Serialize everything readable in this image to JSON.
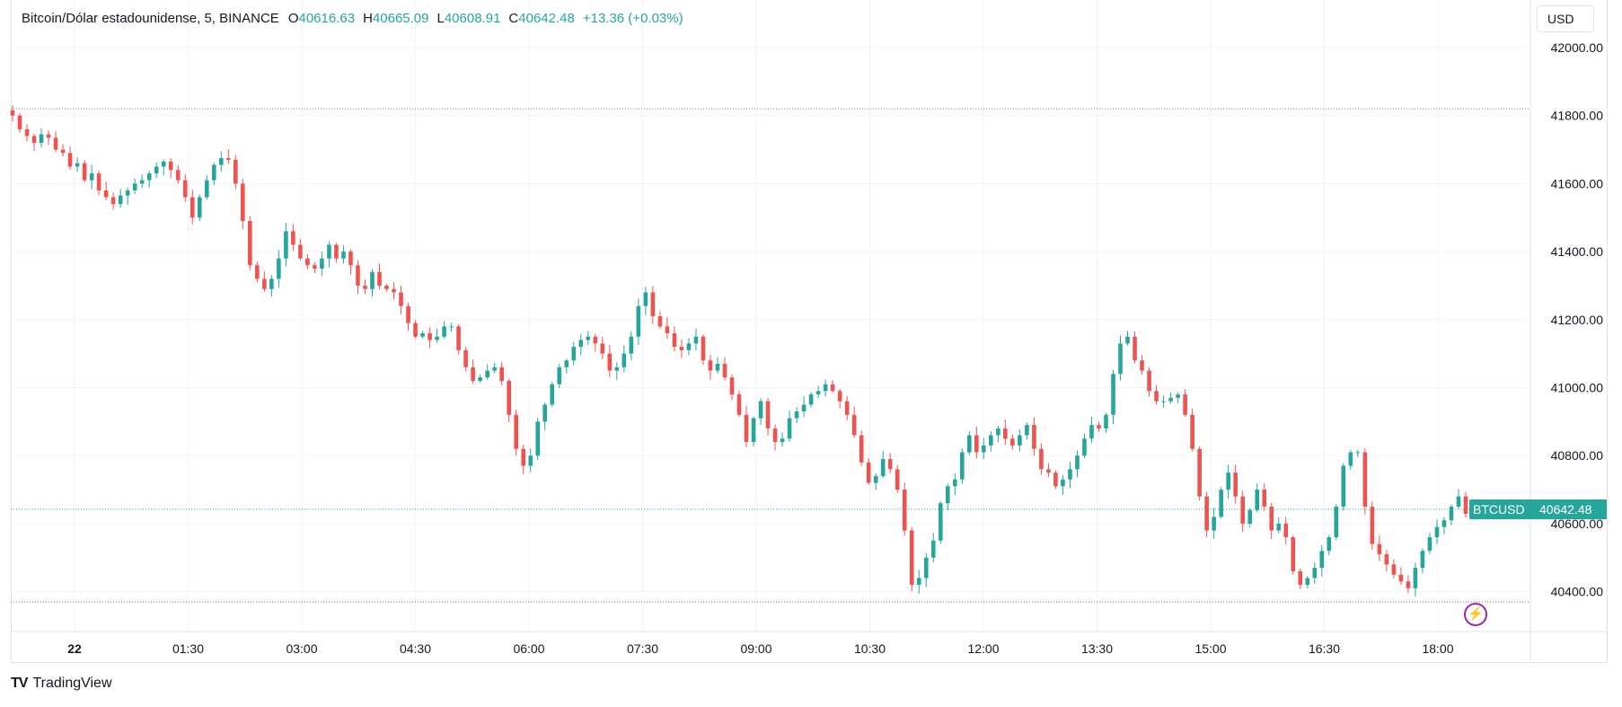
{
  "legend": {
    "title": "Bitcoin/Dólar estadounidense, 5, BINANCE",
    "o_key": "O",
    "o_val": "40616.63",
    "h_key": "H",
    "h_val": "40665.09",
    "l_key": "L",
    "l_val": "40608.91",
    "c_key": "C",
    "c_val": "40642.48",
    "change": "+13.36 (+0.03%)"
  },
  "currency_button": "USD",
  "symbol_tag": "BTCUSD",
  "last_price_tag": "40642.48",
  "brand": {
    "logo": "TV",
    "name": "TradingView"
  },
  "icons": {
    "bolt": "lightning-bolt-icon"
  },
  "colors": {
    "up": "#26a69a",
    "down": "#ef5350",
    "grid": "#f0f3fa",
    "text": "#131722",
    "accent": "#9c27b0"
  },
  "chart_data": {
    "type": "candlestick",
    "symbol": "BTCUSD",
    "interval": "5",
    "exchange": "BINANCE",
    "y_ticks": [
      "40400.00",
      "40600.00",
      "40800.00",
      "41000.00",
      "41200.00",
      "41400.00",
      "41600.00",
      "41800.00",
      "42000.00"
    ],
    "x_ticks": [
      "22",
      "01:30",
      "03:00",
      "04:30",
      "06:00",
      "07:30",
      "09:00",
      "10:30",
      "12:00",
      "13:30",
      "15:00",
      "16:30",
      "18:00"
    ],
    "ylim": [
      40300,
      42100
    ],
    "session_high": 41820,
    "session_low": 40370,
    "last_price": 40642.48,
    "closes": [
      41800,
      41760,
      41740,
      41720,
      41745,
      41735,
      41700,
      41690,
      41650,
      41660,
      41610,
      41630,
      41580,
      41560,
      41540,
      41565,
      41580,
      41600,
      41610,
      41630,
      41650,
      41665,
      41640,
      41610,
      41560,
      41500,
      41560,
      41610,
      41655,
      41675,
      41670,
      41600,
      41490,
      41360,
      41320,
      41290,
      41320,
      41380,
      41460,
      41420,
      41380,
      41360,
      41350,
      41380,
      41420,
      41380,
      41400,
      41360,
      41300,
      41290,
      41340,
      41300,
      41290,
      41280,
      41240,
      41190,
      41150,
      41160,
      41140,
      41150,
      41180,
      41180,
      41110,
      41060,
      41020,
      41030,
      41050,
      41060,
      41020,
      40920,
      40820,
      40770,
      40800,
      40900,
      40950,
      41010,
      41060,
      41080,
      41120,
      41140,
      41150,
      41130,
      41100,
      41050,
      41060,
      41100,
      41150,
      41240,
      41280,
      41210,
      41180,
      41160,
      41120,
      41110,
      41130,
      41150,
      41080,
      41050,
      41070,
      41030,
      40980,
      40920,
      40840,
      40910,
      40960,
      40880,
      40840,
      40850,
      40910,
      40930,
      40950,
      40980,
      40990,
      41010,
      40990,
      40960,
      40920,
      40860,
      40780,
      40720,
      40740,
      40790,
      40760,
      40700,
      40580,
      40420,
      40440,
      40500,
      40550,
      40660,
      40710,
      40730,
      40810,
      40860,
      40810,
      40830,
      40860,
      40880,
      40850,
      40830,
      40860,
      40890,
      40820,
      40760,
      40750,
      40710,
      40730,
      40760,
      40800,
      40850,
      40890,
      40880,
      40920,
      41040,
      41130,
      41150,
      41080,
      41050,
      40990,
      40960,
      40960,
      40970,
      40980,
      40920,
      40820,
      40680,
      40580,
      40620,
      40700,
      40750,
      40680,
      40600,
      40640,
      40700,
      40650,
      40580,
      40600,
      40560,
      40460,
      40420,
      40440,
      40470,
      40520,
      40560,
      40650,
      40770,
      40810,
      40810,
      40650,
      40540,
      40510,
      40480,
      40450,
      40430,
      40410,
      40470,
      40520,
      40560,
      40590,
      40610,
      40650,
      40680,
      40629,
      40642
    ]
  }
}
